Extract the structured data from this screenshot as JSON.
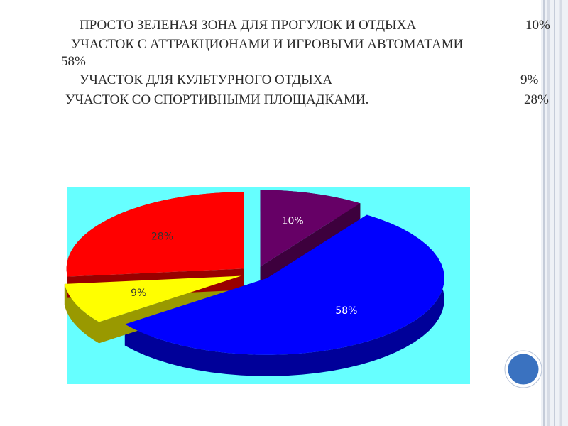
{
  "chart_data": {
    "type": "pie",
    "categories": [
      "ПРОСТО ЗЕЛЕНАЯ ЗОНА ДЛЯ ПРОГУЛОК И ОТДЫХА",
      "УЧАСТОК С АТТРАКЦИОНАМИ И ИГРОВЫМИ АВТОМАТАМИ",
      "УЧАСТОК ДЛЯ КУЛЬТУРНОГО ОТДЫХА",
      "УЧАСТОК СО СПОРТИВНЫМИ ПЛОЩАДКАМИ."
    ],
    "values": [
      10,
      58,
      9,
      28
    ],
    "value_labels": [
      "10%",
      "58%",
      "9%",
      "28%"
    ],
    "colors": [
      "#660066",
      "#0000ff",
      "#ffff00",
      "#ff0000"
    ],
    "background": "#66ffff"
  }
}
